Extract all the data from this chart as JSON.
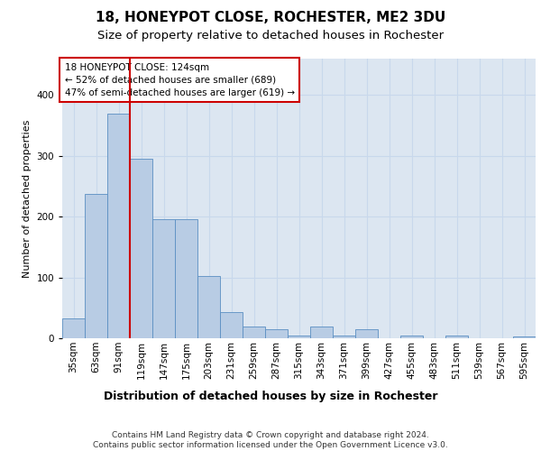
{
  "title1": "18, HONEYPOT CLOSE, ROCHESTER, ME2 3DU",
  "title2": "Size of property relative to detached houses in Rochester",
  "xlabel": "Distribution of detached houses by size in Rochester",
  "ylabel": "Number of detached properties",
  "categories": [
    "35sqm",
    "63sqm",
    "91sqm",
    "119sqm",
    "147sqm",
    "175sqm",
    "203sqm",
    "231sqm",
    "259sqm",
    "287sqm",
    "315sqm",
    "343sqm",
    "371sqm",
    "399sqm",
    "427sqm",
    "455sqm",
    "483sqm",
    "511sqm",
    "539sqm",
    "567sqm",
    "595sqm"
  ],
  "values": [
    33,
    237,
    370,
    295,
    196,
    196,
    103,
    43,
    20,
    15,
    5,
    20,
    5,
    15,
    0,
    5,
    0,
    5,
    0,
    0,
    3
  ],
  "bar_color": "#b8cce4",
  "bar_edge_color": "#5a8fc2",
  "grid_color": "#c8d8ec",
  "bg_color": "#dce6f1",
  "annotation_text": "18 HONEYPOT CLOSE: 124sqm\n← 52% of detached houses are smaller (689)\n47% of semi-detached houses are larger (619) →",
  "vline_x": 2.5,
  "vline_color": "#cc0000",
  "annotation_box_color": "#ffffff",
  "annotation_box_edge": "#cc0000",
  "footer": "Contains HM Land Registry data © Crown copyright and database right 2024.\nContains public sector information licensed under the Open Government Licence v3.0.",
  "ylim": [
    0,
    460
  ],
  "title1_fontsize": 11,
  "title2_fontsize": 9.5,
  "xlabel_fontsize": 9,
  "ylabel_fontsize": 8,
  "tick_fontsize": 7.5,
  "footer_fontsize": 6.5,
  "annot_fontsize": 7.5
}
